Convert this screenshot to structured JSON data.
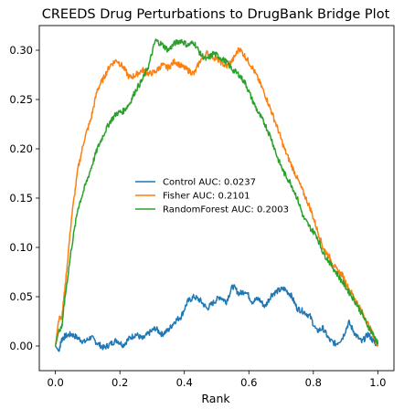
{
  "chart_data": {
    "type": "line",
    "title": "CREEDS Drug Perturbations to DrugBank Bridge Plot",
    "xlabel": "Rank",
    "ylabel": "",
    "xlim": [
      -0.05,
      1.05
    ],
    "ylim": [
      -0.025,
      0.325
    ],
    "xticks": [
      0.0,
      0.2,
      0.4,
      0.6,
      0.8,
      1.0
    ],
    "xtick_labels": [
      "0.0",
      "0.2",
      "0.4",
      "0.6",
      "0.8",
      "1.0"
    ],
    "yticks": [
      0.0,
      0.05,
      0.1,
      0.15,
      0.2,
      0.25,
      0.3
    ],
    "ytick_labels": [
      "0.00",
      "0.05",
      "0.10",
      "0.15",
      "0.20",
      "0.25",
      "0.30"
    ],
    "grid": false,
    "legend_position": "center",
    "series": [
      {
        "name": "Control    AUC: 0.0237",
        "color": "#1f77b4",
        "x": [
          0.0,
          0.01,
          0.02,
          0.03,
          0.05,
          0.07,
          0.09,
          0.11,
          0.13,
          0.15,
          0.17,
          0.19,
          0.21,
          0.23,
          0.25,
          0.27,
          0.29,
          0.31,
          0.33,
          0.35,
          0.37,
          0.39,
          0.41,
          0.43,
          0.45,
          0.47,
          0.49,
          0.51,
          0.53,
          0.55,
          0.57,
          0.59,
          0.61,
          0.63,
          0.65,
          0.67,
          0.69,
          0.71,
          0.73,
          0.75,
          0.77,
          0.79,
          0.81,
          0.83,
          0.85,
          0.87,
          0.89,
          0.91,
          0.93,
          0.95,
          0.97,
          0.99,
          1.0
        ],
        "y": [
          0.0,
          -0.005,
          0.007,
          0.01,
          0.012,
          0.008,
          0.004,
          0.009,
          0.003,
          -0.002,
          0.002,
          0.006,
          0.001,
          0.008,
          0.012,
          0.007,
          0.013,
          0.018,
          0.012,
          0.016,
          0.025,
          0.03,
          0.045,
          0.05,
          0.046,
          0.038,
          0.044,
          0.05,
          0.045,
          0.061,
          0.053,
          0.056,
          0.045,
          0.048,
          0.04,
          0.052,
          0.056,
          0.058,
          0.052,
          0.038,
          0.035,
          0.03,
          0.015,
          0.018,
          0.006,
          0.002,
          0.008,
          0.024,
          0.012,
          0.004,
          0.012,
          0.003,
          0.003
        ]
      },
      {
        "name": "Fisher    AUC: 0.2101",
        "color": "#ff7f0e",
        "x": [
          0.0,
          0.01,
          0.02,
          0.03,
          0.05,
          0.07,
          0.09,
          0.11,
          0.13,
          0.15,
          0.17,
          0.19,
          0.21,
          0.23,
          0.25,
          0.27,
          0.29,
          0.31,
          0.33,
          0.35,
          0.37,
          0.39,
          0.41,
          0.43,
          0.45,
          0.47,
          0.49,
          0.51,
          0.53,
          0.55,
          0.57,
          0.59,
          0.61,
          0.63,
          0.65,
          0.67,
          0.69,
          0.71,
          0.73,
          0.75,
          0.77,
          0.79,
          0.81,
          0.83,
          0.85,
          0.87,
          0.89,
          0.91,
          0.93,
          0.95,
          0.97,
          0.99,
          1.0
        ],
        "y": [
          0.0,
          0.027,
          0.03,
          0.06,
          0.13,
          0.18,
          0.21,
          0.23,
          0.26,
          0.272,
          0.285,
          0.29,
          0.283,
          0.272,
          0.275,
          0.28,
          0.276,
          0.278,
          0.285,
          0.282,
          0.289,
          0.284,
          0.28,
          0.276,
          0.29,
          0.297,
          0.293,
          0.289,
          0.283,
          0.29,
          0.302,
          0.293,
          0.283,
          0.27,
          0.255,
          0.238,
          0.22,
          0.2,
          0.185,
          0.17,
          0.155,
          0.14,
          0.12,
          0.1,
          0.09,
          0.078,
          0.072,
          0.058,
          0.048,
          0.035,
          0.022,
          0.008,
          0.0
        ]
      },
      {
        "name": "RandomForest    AUC: 0.2003",
        "color": "#2ca02c",
        "x": [
          0.0,
          0.01,
          0.02,
          0.03,
          0.05,
          0.07,
          0.09,
          0.11,
          0.13,
          0.15,
          0.17,
          0.19,
          0.21,
          0.23,
          0.25,
          0.27,
          0.29,
          0.31,
          0.33,
          0.35,
          0.37,
          0.39,
          0.41,
          0.43,
          0.45,
          0.47,
          0.49,
          0.51,
          0.53,
          0.55,
          0.57,
          0.59,
          0.61,
          0.63,
          0.65,
          0.67,
          0.69,
          0.71,
          0.73,
          0.75,
          0.77,
          0.79,
          0.81,
          0.83,
          0.85,
          0.87,
          0.89,
          0.91,
          0.93,
          0.95,
          0.97,
          0.99,
          1.0
        ],
        "y": [
          0.0,
          0.015,
          0.02,
          0.05,
          0.1,
          0.14,
          0.16,
          0.18,
          0.2,
          0.215,
          0.228,
          0.236,
          0.238,
          0.246,
          0.26,
          0.27,
          0.285,
          0.31,
          0.306,
          0.3,
          0.307,
          0.31,
          0.305,
          0.308,
          0.296,
          0.29,
          0.297,
          0.293,
          0.288,
          0.28,
          0.275,
          0.266,
          0.25,
          0.236,
          0.225,
          0.21,
          0.19,
          0.175,
          0.165,
          0.15,
          0.13,
          0.12,
          0.112,
          0.095,
          0.085,
          0.075,
          0.065,
          0.055,
          0.045,
          0.033,
          0.02,
          0.009,
          0.002
        ]
      }
    ]
  }
}
